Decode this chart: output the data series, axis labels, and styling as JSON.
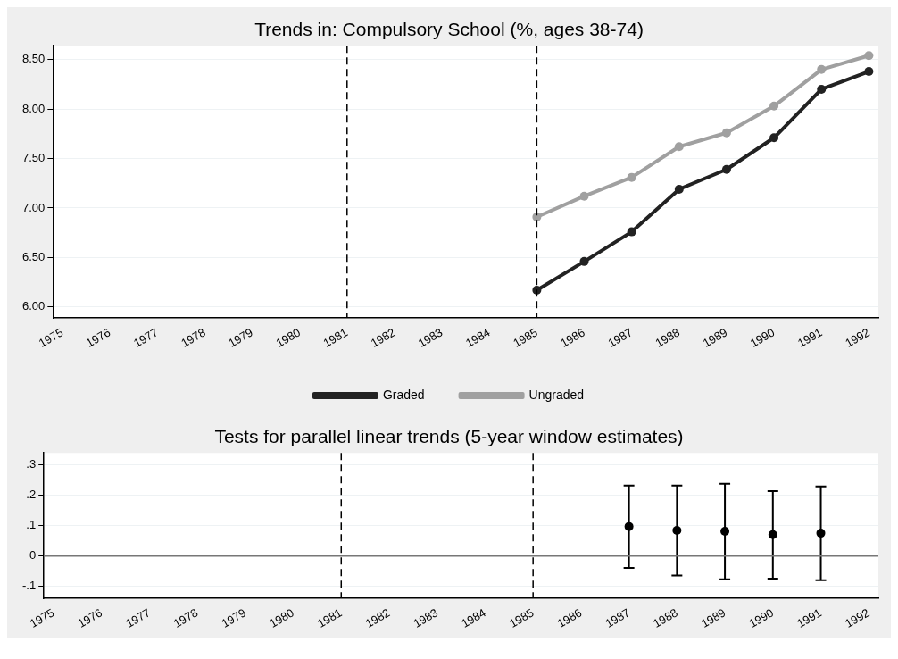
{
  "chart_data": [
    {
      "type": "line",
      "title": "Trends in: Compulsory School (%, ages 38-74)",
      "series": [
        {
          "name": "Graded",
          "color": "#222222",
          "x": [
            1985,
            1986,
            1987,
            1988,
            1989,
            1990,
            1991,
            1992
          ],
          "values": [
            6.17,
            6.46,
            6.76,
            7.19,
            7.39,
            7.71,
            8.2,
            8.38
          ]
        },
        {
          "name": "Ungraded",
          "color": "#a0a0a0",
          "x": [
            1985,
            1986,
            1987,
            1988,
            1989,
            1990,
            1991,
            1992
          ],
          "values": [
            6.91,
            7.12,
            7.31,
            7.62,
            7.76,
            8.03,
            8.4,
            8.54
          ]
        }
      ],
      "xlim": [
        1974.8,
        1992.2
      ],
      "xticks": [
        1975,
        1976,
        1977,
        1978,
        1979,
        1980,
        1981,
        1982,
        1983,
        1984,
        1985,
        1986,
        1987,
        1988,
        1989,
        1990,
        1991,
        1992
      ],
      "ylim": [
        5.89,
        8.64
      ],
      "yticks": [
        {
          "value": 6,
          "label": "6.00"
        },
        {
          "value": 6.5,
          "label": "6.50"
        },
        {
          "value": 7,
          "label": "7.00"
        },
        {
          "value": 7.5,
          "label": "7.50"
        },
        {
          "value": 8,
          "label": "8.00"
        },
        {
          "value": 8.5,
          "label": "8.50"
        }
      ],
      "ref_lines": [
        {
          "axis": "x",
          "value": 1981,
          "color": "#000000",
          "line_style": "dashed"
        },
        {
          "axis": "x",
          "value": 1985,
          "color": "#000000",
          "line_style": "dashed"
        }
      ],
      "grid": "y",
      "legend": "bottom",
      "marker": "circle",
      "line_style": "solid"
    },
    {
      "type": "scatter",
      "title": "Tests for parallel linear trends (5-year window estimates)",
      "series": [
        {
          "color": "#000000",
          "x": [
            1987,
            1988,
            1989,
            1990,
            1991
          ],
          "values": [
            0.097,
            0.084,
            0.081,
            0.07,
            0.075
          ],
          "errors": [
            [
              -0.04,
              0.232
            ],
            [
              -0.065,
              0.232
            ],
            [
              -0.077,
              0.238
            ],
            [
              -0.075,
              0.214
            ],
            [
              -0.08,
              0.229
            ]
          ]
        }
      ],
      "xlim": [
        1974.8,
        1992.2
      ],
      "xticks": [
        1975,
        1976,
        1977,
        1978,
        1979,
        1980,
        1981,
        1982,
        1983,
        1984,
        1985,
        1986,
        1987,
        1988,
        1989,
        1990,
        1991,
        1992
      ],
      "ylim": [
        -0.14,
        0.34
      ],
      "yticks": [
        {
          "value": -0.1,
          "label": "-.1"
        },
        {
          "value": 0,
          "label": "0"
        },
        {
          "value": 0.1,
          "label": ".1"
        },
        {
          "value": 0.2,
          "label": ".2"
        },
        {
          "value": 0.3,
          "label": ".3"
        }
      ],
      "ref_lines": [
        {
          "axis": "x",
          "value": 1981,
          "color": "#000000",
          "line_style": "dashed"
        },
        {
          "axis": "x",
          "value": 1985,
          "color": "#000000",
          "line_style": "dashed"
        },
        {
          "axis": "y",
          "value": 0,
          "color": "#777777",
          "line_style": "solid"
        }
      ],
      "grid": "y",
      "marker": "circle"
    }
  ]
}
